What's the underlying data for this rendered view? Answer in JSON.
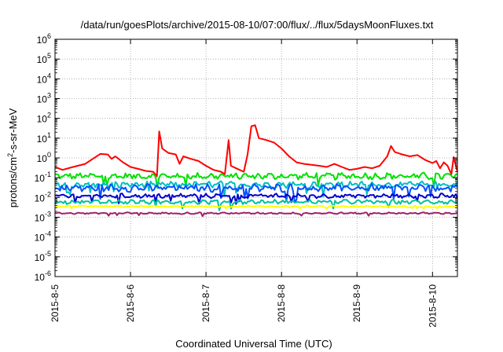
{
  "chart_data": {
    "type": "line",
    "title": "/data/run/goesPlots/archive/2015-08-10/07:00/flux/../flux/5daysMoonFluxes.txt",
    "xlabel": "Coordinated Universal Time (UTC)",
    "ylabel": {
      "pre": "protons/cm",
      "sup": "2",
      "post": "-s-sr-MeV"
    },
    "y_scale": "log",
    "ylim_exponents": [
      -6,
      6
    ],
    "y_ticks": [
      {
        "base": "10",
        "exp": "6"
      },
      {
        "base": "10",
        "exp": "5"
      },
      {
        "base": "10",
        "exp": "4"
      },
      {
        "base": "10",
        "exp": "3"
      },
      {
        "base": "10",
        "exp": "2"
      },
      {
        "base": "10",
        "exp": "1"
      },
      {
        "base": "10",
        "exp": "0"
      },
      {
        "base": "10",
        "exp": "-1"
      },
      {
        "base": "10",
        "exp": "-2"
      },
      {
        "base": "10",
        "exp": "-3"
      },
      {
        "base": "10",
        "exp": "-4"
      },
      {
        "base": "10",
        "exp": "-5"
      },
      {
        "base": "10",
        "exp": "-6"
      }
    ],
    "x_tick_labels": [
      "2015-8-5",
      "2015-8-6",
      "2015-8-7",
      "2015-8-8",
      "2015-8-9",
      "2015-8-10"
    ],
    "x_range_days": [
      0,
      5.33
    ],
    "grid": true,
    "series": [
      {
        "color": "#ff0000",
        "values": [
          [
            0.0,
            0.35
          ],
          [
            0.1,
            0.25
          ],
          [
            0.2,
            0.32
          ],
          [
            0.3,
            0.4
          ],
          [
            0.4,
            0.5
          ],
          [
            0.5,
            0.9
          ],
          [
            0.6,
            1.6
          ],
          [
            0.7,
            1.5
          ],
          [
            0.75,
            0.9
          ],
          [
            0.8,
            1.2
          ],
          [
            0.9,
            0.6
          ],
          [
            1.0,
            0.35
          ],
          [
            1.1,
            0.28
          ],
          [
            1.2,
            0.22
          ],
          [
            1.3,
            0.2
          ],
          [
            1.35,
            0.12
          ],
          [
            1.38,
            22.0
          ],
          [
            1.42,
            3.0
          ],
          [
            1.5,
            1.8
          ],
          [
            1.6,
            1.5
          ],
          [
            1.65,
            0.5
          ],
          [
            1.7,
            1.2
          ],
          [
            1.8,
            0.9
          ],
          [
            1.9,
            0.7
          ],
          [
            2.0,
            0.4
          ],
          [
            2.1,
            0.25
          ],
          [
            2.2,
            0.2
          ],
          [
            2.25,
            0.15
          ],
          [
            2.3,
            8.0
          ],
          [
            2.33,
            0.4
          ],
          [
            2.4,
            0.3
          ],
          [
            2.5,
            0.2
          ],
          [
            2.55,
            1.5
          ],
          [
            2.6,
            40.0
          ],
          [
            2.65,
            45.0
          ],
          [
            2.7,
            10.0
          ],
          [
            2.8,
            8.0
          ],
          [
            2.9,
            6.0
          ],
          [
            3.0,
            3.0
          ],
          [
            3.1,
            1.2
          ],
          [
            3.2,
            0.6
          ],
          [
            3.3,
            0.5
          ],
          [
            3.4,
            0.45
          ],
          [
            3.5,
            0.4
          ],
          [
            3.6,
            0.35
          ],
          [
            3.7,
            0.5
          ],
          [
            3.8,
            0.35
          ],
          [
            3.9,
            0.25
          ],
          [
            4.0,
            0.28
          ],
          [
            4.1,
            0.35
          ],
          [
            4.2,
            0.3
          ],
          [
            4.3,
            0.4
          ],
          [
            4.4,
            1.2
          ],
          [
            4.45,
            4.0
          ],
          [
            4.5,
            2.0
          ],
          [
            4.6,
            1.5
          ],
          [
            4.7,
            1.2
          ],
          [
            4.8,
            1.4
          ],
          [
            4.9,
            0.8
          ],
          [
            5.0,
            0.55
          ],
          [
            5.05,
            0.7
          ],
          [
            5.1,
            0.3
          ],
          [
            5.15,
            0.6
          ],
          [
            5.2,
            0.4
          ],
          [
            5.25,
            0.15
          ],
          [
            5.28,
            1.1
          ],
          [
            5.33,
            0.2
          ]
        ]
      },
      {
        "color": "#00e000",
        "base": 0.12,
        "amplitude_decades": 0.12
      },
      {
        "color": "#00c0c0",
        "base": 0.045,
        "amplitude_decades": 0.12
      },
      {
        "color": "#0050ff",
        "base": 0.03,
        "amplitude_decades": 0.14
      },
      {
        "color": "#0000cc",
        "base": 0.012,
        "amplitude_decades": 0.08
      },
      {
        "color": "#00c0a0",
        "base": 0.006,
        "amplitude_decades": 0.08
      },
      {
        "color": "#ffff00",
        "base": 0.0035,
        "amplitude_decades": 0.03
      },
      {
        "color": "#a0206a",
        "base": 0.0016,
        "amplitude_decades": 0.03
      }
    ]
  }
}
